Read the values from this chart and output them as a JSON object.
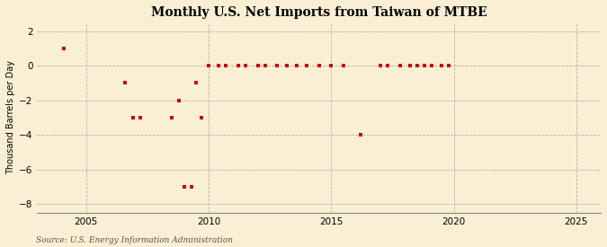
{
  "title": "Monthly U.S. Net Imports from Taiwan of MTBE",
  "ylabel": "Thousand Barrels per Day",
  "source": "Source: U.S. Energy Information Administration",
  "background_color": "#faefd4",
  "marker_color": "#cc0000",
  "xlim": [
    2003.0,
    2026.0
  ],
  "ylim": [
    -8.5,
    2.5
  ],
  "xticks": [
    2005,
    2010,
    2015,
    2020,
    2025
  ],
  "yticks": [
    -8,
    -6,
    -4,
    -2,
    0,
    2
  ],
  "data_points": [
    [
      2004.1,
      1
    ],
    [
      2006.6,
      -1
    ],
    [
      2006.9,
      -3
    ],
    [
      2007.2,
      -3
    ],
    [
      2008.5,
      -3
    ],
    [
      2008.8,
      -2
    ],
    [
      2009.0,
      -7
    ],
    [
      2009.3,
      -7
    ],
    [
      2009.5,
      -1
    ],
    [
      2009.7,
      -3
    ],
    [
      2010.0,
      0
    ],
    [
      2010.4,
      0
    ],
    [
      2010.7,
      0
    ],
    [
      2011.2,
      0
    ],
    [
      2011.5,
      0
    ],
    [
      2012.0,
      0
    ],
    [
      2012.3,
      0
    ],
    [
      2012.8,
      0
    ],
    [
      2013.2,
      0
    ],
    [
      2013.6,
      0
    ],
    [
      2014.0,
      0
    ],
    [
      2014.5,
      0
    ],
    [
      2015.0,
      0
    ],
    [
      2015.5,
      0
    ],
    [
      2016.2,
      -4
    ],
    [
      2017.0,
      0
    ],
    [
      2017.3,
      0
    ],
    [
      2017.8,
      0
    ],
    [
      2018.2,
      0
    ],
    [
      2018.5,
      0
    ],
    [
      2018.8,
      0
    ],
    [
      2019.1,
      0
    ],
    [
      2019.5,
      0
    ],
    [
      2019.8,
      0
    ]
  ]
}
